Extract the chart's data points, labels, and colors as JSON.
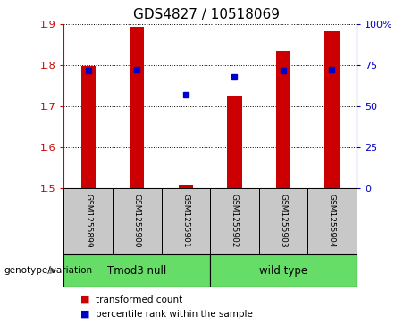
{
  "title": "GDS4827 / 10518069",
  "samples": [
    "GSM1255899",
    "GSM1255900",
    "GSM1255901",
    "GSM1255902",
    "GSM1255903",
    "GSM1255904"
  ],
  "red_values": [
    1.797,
    1.893,
    1.507,
    1.726,
    1.836,
    1.882
  ],
  "blue_values": [
    1.787,
    1.789,
    1.728,
    1.772,
    1.787,
    1.789
  ],
  "ylim_left": [
    1.5,
    1.9
  ],
  "ylim_right": [
    0,
    100
  ],
  "yticks_left": [
    1.5,
    1.6,
    1.7,
    1.8,
    1.9
  ],
  "yticks_right": [
    0,
    25,
    50,
    75,
    100
  ],
  "ytick_labels_right": [
    "0",
    "25",
    "50",
    "75",
    "100%"
  ],
  "group1_label": "Tmod3 null",
  "group2_label": "wild type",
  "group_label": "genotype/variation",
  "legend_red": "transformed count",
  "legend_blue": "percentile rank within the sample",
  "bar_bottom": 1.5,
  "bar_color": "#cc0000",
  "dot_color": "#0000cc",
  "gray_color": "#c8c8c8",
  "green_color": "#66dd66",
  "left_tick_color": "#cc0000",
  "right_tick_color": "#0000cc",
  "bar_width": 0.3,
  "dot_size": 5
}
